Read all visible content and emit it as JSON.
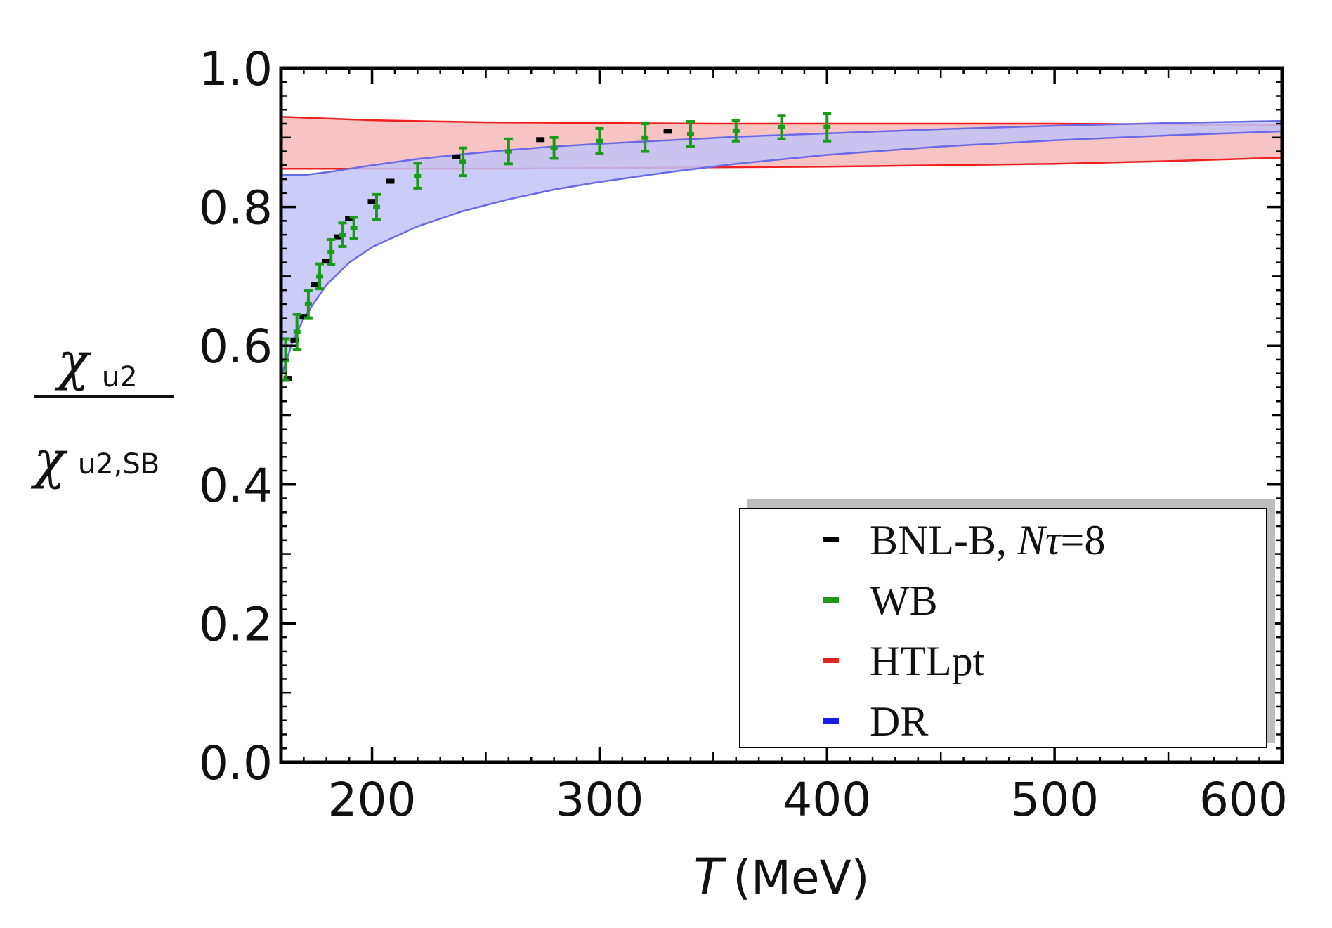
{
  "chart_data": {
    "type": "scatter",
    "title": "",
    "xlabel_symbol": "T",
    "xlabel_unit": "(MeV)",
    "ylabel": {
      "numerator_symbol": "χ",
      "numerator_subscript": "u2",
      "denominator_symbol": "χ",
      "denominator_subscript": "u2,SB"
    },
    "xlim": [
      160,
      600
    ],
    "ylim": [
      0.0,
      1.0
    ],
    "xticks": [
      {
        "value": 200,
        "label": "200"
      },
      {
        "value": 300,
        "label": "300"
      },
      {
        "value": 400,
        "label": "400"
      },
      {
        "value": 500,
        "label": "500"
      },
      {
        "value": 600,
        "label": "600"
      }
    ],
    "yticks": [
      {
        "value": 0.0,
        "label": "0.0"
      },
      {
        "value": 0.2,
        "label": "0.2"
      },
      {
        "value": 0.4,
        "label": "0.4"
      },
      {
        "value": 0.6,
        "label": "0.6"
      },
      {
        "value": 0.8,
        "label": "0.8"
      },
      {
        "value": 1.0,
        "label": "1.0"
      }
    ],
    "legend_position": "bottom-right",
    "legend": [
      {
        "label": "BNL-B, ",
        "label_math": "Nτ",
        "label_suffix": "=8",
        "color": "#000000"
      },
      {
        "label": "WB",
        "label_math": "",
        "label_suffix": "",
        "color": "#1a9c1a"
      },
      {
        "label": "HTLpt",
        "label_math": "",
        "label_suffix": "",
        "color": "#ee2020"
      },
      {
        "label": "DR",
        "label_math": "",
        "label_suffix": "",
        "color": "#1a1aee"
      }
    ],
    "series": [
      {
        "name": "BNL-B, Nτ=8",
        "kind": "points",
        "color": "#000000",
        "x": [
          163,
          166,
          170,
          175,
          180,
          185,
          190,
          200,
          208,
          237,
          274,
          330
        ],
        "y": [
          0.553,
          0.608,
          0.642,
          0.688,
          0.722,
          0.757,
          0.783,
          0.808,
          0.837,
          0.872,
          0.897,
          0.909
        ]
      },
      {
        "name": "WB",
        "kind": "errorbar",
        "color": "#1a9c1a",
        "x": [
          162,
          167,
          172,
          177,
          182,
          187,
          192,
          202,
          220,
          240,
          260,
          280,
          300,
          320,
          340,
          360,
          380,
          400
        ],
        "y": [
          0.58,
          0.62,
          0.66,
          0.7,
          0.735,
          0.76,
          0.77,
          0.8,
          0.845,
          0.865,
          0.88,
          0.885,
          0.895,
          0.9,
          0.905,
          0.91,
          0.915,
          0.915
        ],
        "yerr": [
          0.03,
          0.025,
          0.02,
          0.018,
          0.018,
          0.017,
          0.015,
          0.018,
          0.018,
          0.02,
          0.018,
          0.015,
          0.018,
          0.02,
          0.018,
          0.015,
          0.017,
          0.02
        ]
      },
      {
        "name": "HTLpt",
        "kind": "band",
        "color": "#ee2020",
        "fill": "#f7b8b8",
        "x": [
          160,
          200,
          250,
          300,
          350,
          400,
          450,
          500,
          550,
          600
        ],
        "upper": [
          0.93,
          0.925,
          0.922,
          0.921,
          0.92,
          0.92,
          0.92,
          0.92,
          0.919,
          0.918
        ],
        "lower": [
          0.855,
          0.855,
          0.855,
          0.856,
          0.857,
          0.858,
          0.86,
          0.862,
          0.866,
          0.871
        ]
      },
      {
        "name": "DR",
        "kind": "band",
        "color": "#6a6ae8",
        "fill": "#c3c3f7",
        "x": [
          160,
          165,
          170,
          180,
          190,
          200,
          220,
          240,
          260,
          280,
          300,
          330,
          360,
          400,
          450,
          500,
          550,
          600
        ],
        "upper": [
          0.847,
          0.846,
          0.846,
          0.85,
          0.855,
          0.86,
          0.869,
          0.876,
          0.882,
          0.887,
          0.891,
          0.896,
          0.901,
          0.906,
          0.912,
          0.917,
          0.921,
          0.924
        ],
        "lower": [
          0.555,
          0.605,
          0.64,
          0.688,
          0.72,
          0.742,
          0.772,
          0.794,
          0.811,
          0.825,
          0.836,
          0.85,
          0.862,
          0.875,
          0.887,
          0.896,
          0.903,
          0.909
        ]
      }
    ]
  }
}
